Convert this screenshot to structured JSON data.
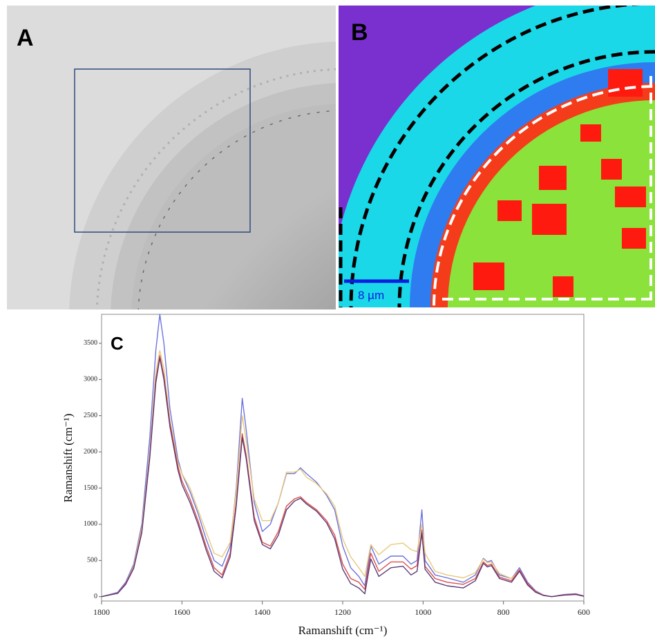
{
  "panel_labels": [
    "A",
    "B",
    "C"
  ],
  "scale_bar": "8 µm",
  "chart_data": {
    "type": "line",
    "xlabel": "Ramanshift (cm⁻¹)",
    "ylabel": "Ramanshift (cm⁻¹)",
    "x": [
      1800,
      1760,
      1740,
      1720,
      1700,
      1680,
      1665,
      1655,
      1645,
      1630,
      1610,
      1600,
      1580,
      1560,
      1540,
      1520,
      1500,
      1480,
      1465,
      1450,
      1440,
      1420,
      1400,
      1380,
      1360,
      1340,
      1320,
      1305,
      1290,
      1265,
      1240,
      1220,
      1200,
      1180,
      1160,
      1145,
      1130,
      1110,
      1080,
      1050,
      1030,
      1015,
      1003,
      995,
      970,
      940,
      900,
      870,
      850,
      840,
      830,
      810,
      780,
      760,
      740,
      720,
      700,
      680,
      650,
      620,
      600
    ],
    "series": [
      {
        "color": "#6b73e0",
        "values": [
          0,
          60,
          200,
          450,
          1000,
          2200,
          3400,
          3900,
          3500,
          2600,
          1900,
          1700,
          1450,
          1150,
          800,
          500,
          420,
          700,
          1500,
          2740,
          2300,
          1300,
          900,
          1000,
          1300,
          1700,
          1700,
          1780,
          1700,
          1580,
          1400,
          1200,
          700,
          400,
          280,
          150,
          700,
          450,
          560,
          560,
          450,
          500,
          1200,
          500,
          300,
          260,
          200,
          300,
          530,
          480,
          500,
          300,
          250,
          400,
          200,
          80,
          20,
          0,
          30,
          40,
          10
        ]
      },
      {
        "color": "#e8c97a",
        "values": [
          0,
          50,
          180,
          420,
          950,
          2000,
          3100,
          3400,
          3150,
          2450,
          1850,
          1700,
          1500,
          1200,
          900,
          600,
          550,
          750,
          1450,
          2500,
          2150,
          1350,
          1050,
          1050,
          1300,
          1720,
          1720,
          1760,
          1650,
          1560,
          1420,
          1250,
          800,
          550,
          400,
          280,
          720,
          580,
          720,
          740,
          650,
          620,
          1000,
          600,
          350,
          300,
          260,
          330,
          520,
          470,
          480,
          320,
          250,
          370,
          180,
          70,
          20,
          0,
          25,
          30,
          10
        ]
      },
      {
        "color": "#d9504a",
        "values": [
          0,
          50,
          180,
          400,
          900,
          1950,
          3000,
          3330,
          3050,
          2400,
          1800,
          1600,
          1350,
          1050,
          700,
          400,
          300,
          600,
          1300,
          2250,
          1950,
          1100,
          750,
          700,
          900,
          1250,
          1350,
          1380,
          1300,
          1200,
          1050,
          850,
          450,
          250,
          200,
          100,
          600,
          350,
          480,
          480,
          380,
          430,
          920,
          420,
          250,
          200,
          170,
          250,
          480,
          430,
          450,
          270,
          220,
          370,
          180,
          70,
          20,
          0,
          25,
          35,
          10
        ]
      },
      {
        "color": "#5a3a7a",
        "values": [
          0,
          45,
          170,
          390,
          880,
          1920,
          2950,
          3300,
          3000,
          2350,
          1750,
          1550,
          1300,
          1000,
          650,
          350,
          260,
          550,
          1250,
          2200,
          1900,
          1050,
          720,
          660,
          850,
          1200,
          1320,
          1360,
          1280,
          1180,
          1020,
          800,
          380,
          180,
          120,
          40,
          520,
          280,
          400,
          420,
          300,
          350,
          880,
          380,
          200,
          150,
          120,
          220,
          460,
          410,
          430,
          250,
          200,
          350,
          160,
          60,
          15,
          0,
          20,
          30,
          5
        ]
      }
    ],
    "xlim": [
      1800,
      600
    ],
    "ylim": [
      -60,
      3900
    ],
    "xticks": [
      1800,
      1600,
      1400,
      1200,
      1000,
      800,
      600
    ],
    "yticks": [
      0,
      500,
      1000,
      1500,
      2000,
      2500,
      3000,
      3500
    ]
  }
}
